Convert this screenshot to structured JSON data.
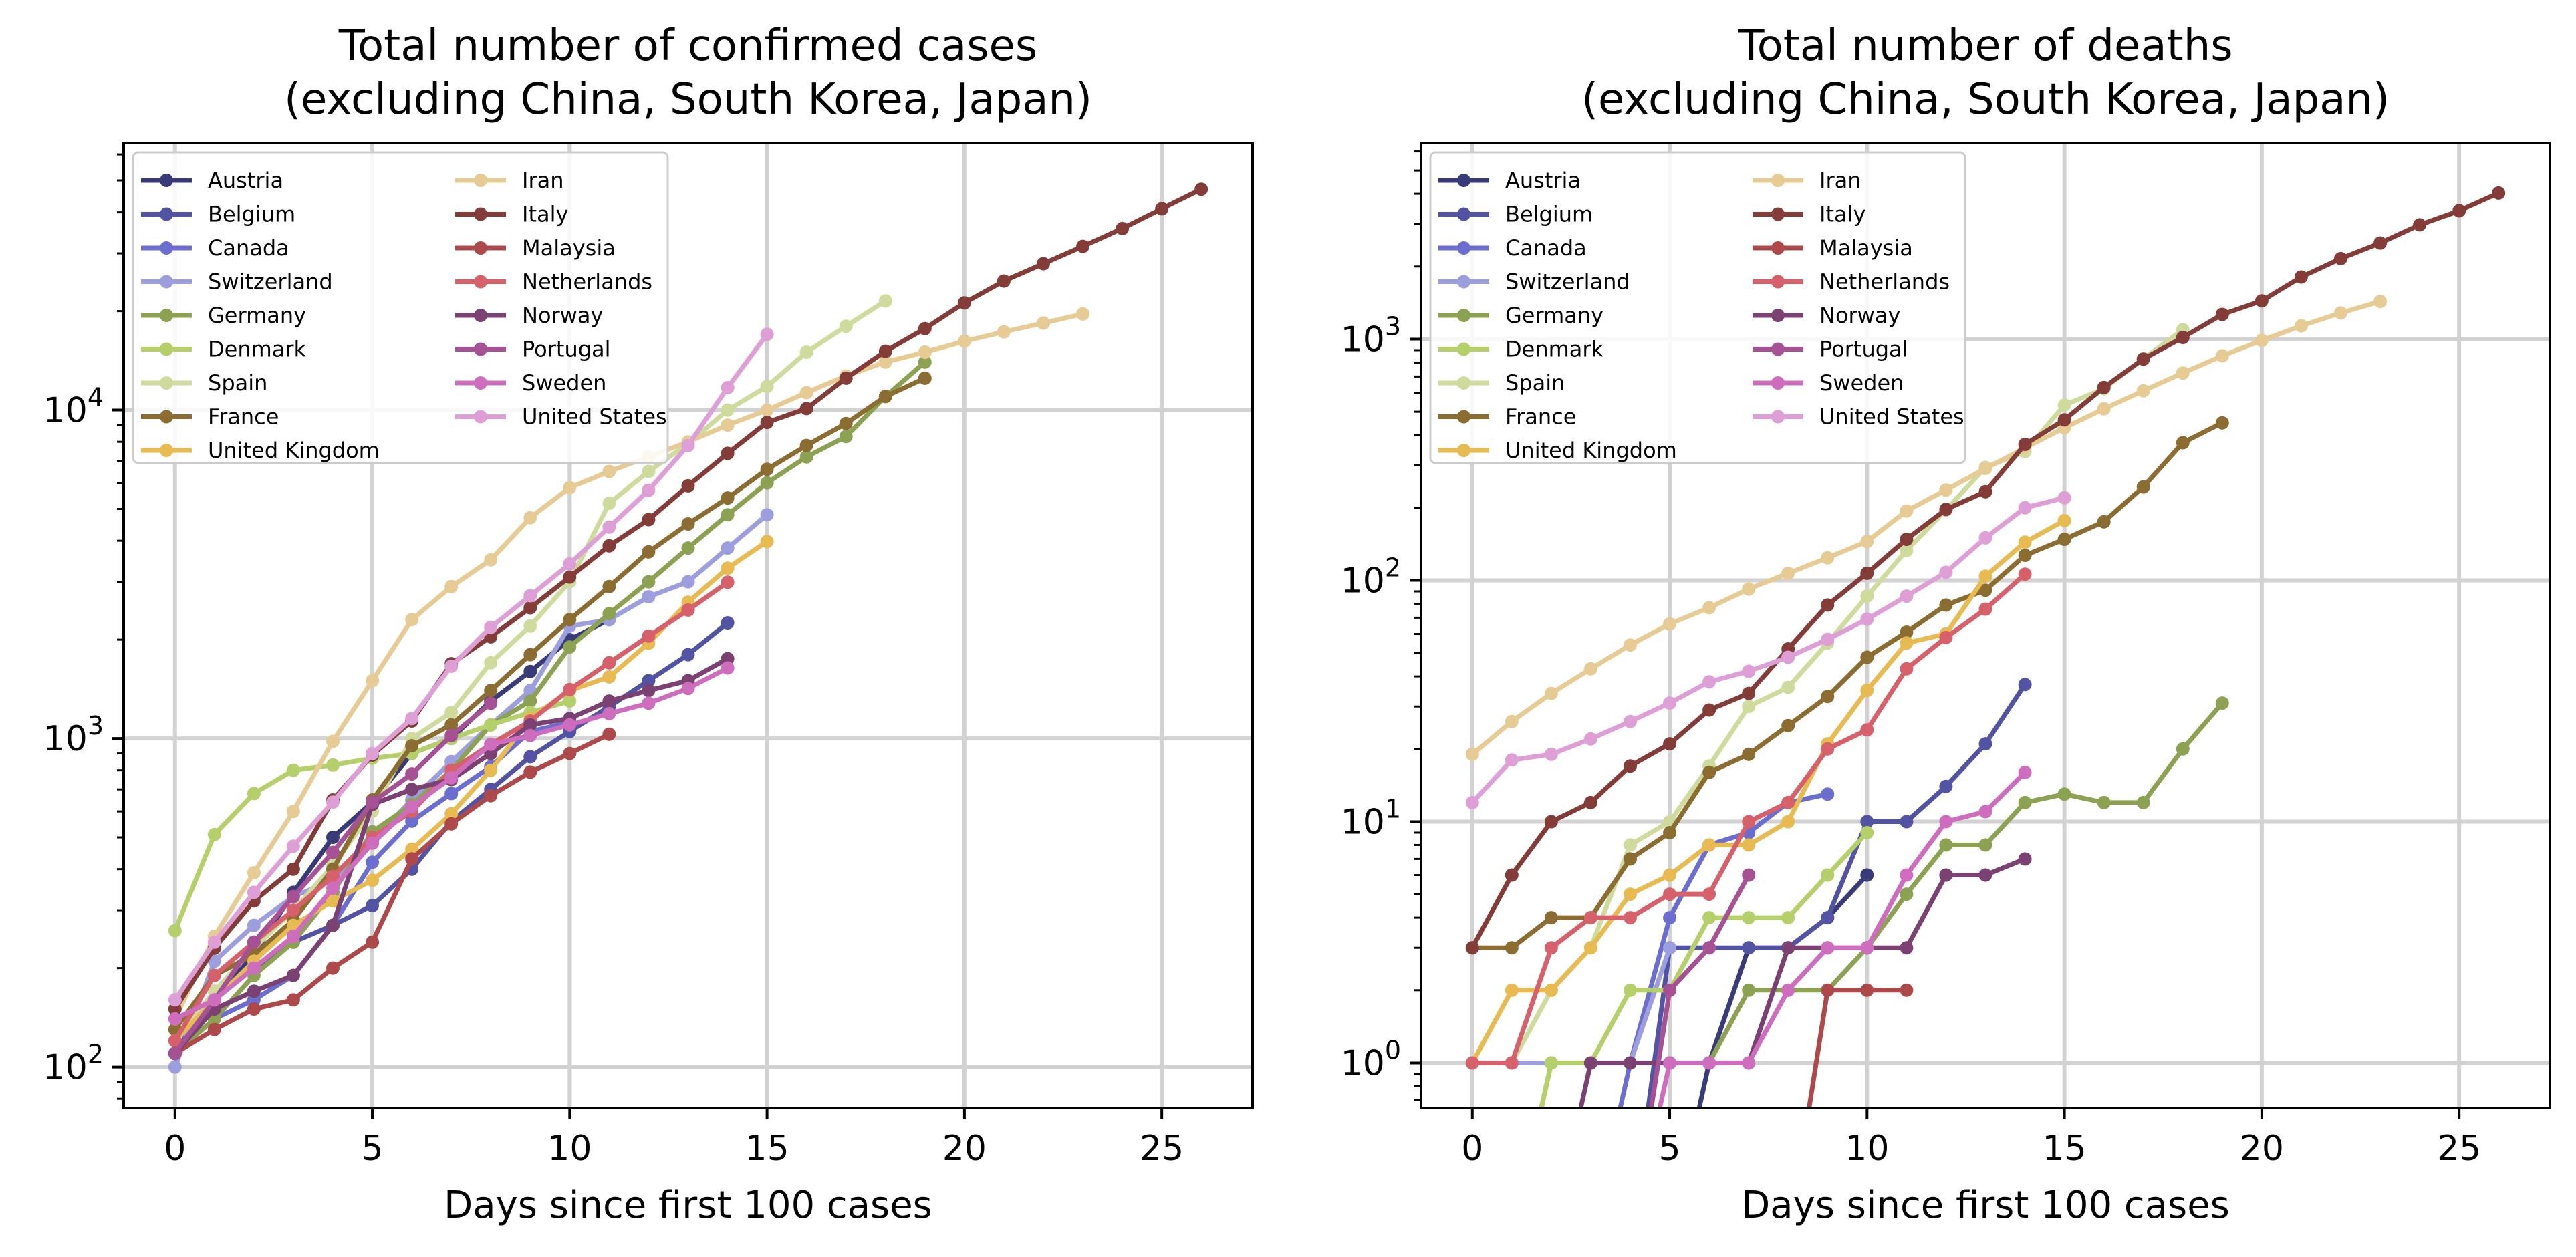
{
  "chart_data": [
    {
      "type": "line",
      "title": "Total number of confirmed cases\n(excluding China, South Korea, Japan)",
      "xlabel": "Days since first 100 cases",
      "ylabel": "",
      "yscale": "log",
      "xlim": [
        -1.3,
        27.3
      ],
      "ylim": [
        75,
        65000
      ],
      "xticks": [
        "0",
        "5",
        "10",
        "15",
        "20",
        "25"
      ],
      "yticks": [
        "10^2",
        "10^3",
        "10^4"
      ],
      "grid": true,
      "legend": "upper left, 2 columns",
      "series": [
        {
          "name": "Austria",
          "color": "#393b79",
          "values": [
            110,
            160,
            220,
            340,
            500,
            640,
            900,
            1000,
            1300,
            1600,
            2000,
            2300
          ]
        },
        {
          "name": "Belgium",
          "color": "#5254a3",
          "values": [
            110,
            170,
            200,
            240,
            270,
            310,
            400,
            560,
            700,
            880,
            1050,
            1250,
            1500,
            1800,
            2250
          ]
        },
        {
          "name": "Canada",
          "color": "#6b6ecf",
          "values": [
            110,
            140,
            160,
            190,
            270,
            420,
            560,
            680,
            820,
            1050,
            1120
          ]
        },
        {
          "name": "Switzerland",
          "color": "#9c9ede",
          "values": [
            100,
            210,
            270,
            330,
            370,
            490,
            650,
            850,
            1100,
            1400,
            2200,
            2300,
            2700,
            3000,
            3800,
            4800
          ]
        },
        {
          "name": "Germany",
          "color": "#8ca252",
          "values": [
            110,
            140,
            190,
            240,
            340,
            520,
            630,
            800,
            1100,
            1300,
            1900,
            2400,
            3000,
            3800,
            4800,
            6000,
            7200,
            8300,
            11000,
            14000
          ]
        },
        {
          "name": "Denmark",
          "color": "#b5cf6b",
          "values": [
            260,
            510,
            680,
            800,
            830,
            870,
            900,
            1000,
            1100,
            1200,
            1300
          ]
        },
        {
          "name": "Spain",
          "color": "#cedb9c",
          "values": [
            120,
            170,
            230,
            300,
            410,
            600,
            1000,
            1200,
            1700,
            2200,
            3000,
            5200,
            6500,
            7900,
            10000,
            11800,
            15000,
            18000,
            21500
          ]
        },
        {
          "name": "France",
          "color": "#8c6d31",
          "values": [
            130,
            190,
            220,
            280,
            400,
            650,
            950,
            1100,
            1400,
            1800,
            2300,
            2900,
            3700,
            4500,
            5400,
            6600,
            7800,
            9100,
            11000,
            12500
          ]
        },
        {
          "name": "United Kingdom",
          "color": "#e7ba52",
          "values": [
            120,
            160,
            210,
            270,
            320,
            370,
            460,
            590,
            800,
            1150,
            1400,
            1540,
            1950,
            2600,
            3300,
            3980
          ]
        },
        {
          "name": "Iran",
          "color": "#e7cb94",
          "values": [
            140,
            250,
            390,
            600,
            980,
            1500,
            2300,
            2900,
            3500,
            4700,
            5800,
            6500,
            7200,
            8000,
            9000,
            10000,
            11300,
            12700,
            14000,
            15000,
            16200,
            17300,
            18400,
            19600
          ]
        },
        {
          "name": "Italy",
          "color": "#843c39",
          "values": [
            150,
            230,
            320,
            400,
            650,
            890,
            1130,
            1690,
            2040,
            2500,
            3100,
            3860,
            4640,
            5880,
            7380,
            9170,
            10100,
            12500,
            15100,
            17700,
            21200,
            24700,
            27900,
            31500,
            35700,
            41000,
            47000
          ]
        },
        {
          "name": "Malaysia",
          "color": "#ad494a",
          "values": [
            110,
            130,
            150,
            160,
            200,
            240,
            430,
            550,
            670,
            790,
            900,
            1030
          ]
        },
        {
          "name": "Netherlands",
          "color": "#d6616b",
          "values": [
            120,
            190,
            240,
            300,
            380,
            500,
            600,
            800,
            960,
            1130,
            1410,
            1700,
            2050,
            2460,
            2990
          ]
        },
        {
          "name": "Norway",
          "color": "#7b4173",
          "values": [
            110,
            150,
            170,
            190,
            270,
            630,
            700,
            750,
            900,
            1100,
            1150,
            1300,
            1400,
            1500,
            1750
          ]
        },
        {
          "name": "Portugal",
          "color": "#a55194",
          "values": [
            110,
            160,
            240,
            330,
            450,
            640,
            780,
            1020,
            1280
          ]
        },
        {
          "name": "Sweden",
          "color": "#ce6dbd",
          "values": [
            140,
            160,
            200,
            250,
            350,
            480,
            620,
            760,
            960,
            1020,
            1100,
            1190,
            1280,
            1420,
            1640
          ]
        },
        {
          "name": "United States",
          "color": "#de9ed6",
          "values": [
            160,
            240,
            340,
            470,
            640,
            900,
            1150,
            1660,
            2180,
            2720,
            3400,
            4400,
            5700,
            7800,
            11700,
            17000
          ]
        }
      ]
    },
    {
      "type": "line",
      "title": "Total number of deaths\n(excluding China, South Korea, Japan)",
      "xlabel": "Days since first 100 cases",
      "ylabel": "",
      "yscale": "log",
      "xlim": [
        -1.3,
        27.3
      ],
      "ylim": [
        0.65,
        6500
      ],
      "xticks": [
        "0",
        "5",
        "10",
        "15",
        "20",
        "25"
      ],
      "yticks": [
        "10^0",
        "10^1",
        "10^2",
        "10^3"
      ],
      "grid": true,
      "legend": "upper left, 2 columns",
      "series": [
        {
          "name": "Austria",
          "color": "#393b79",
          "values": [
            0,
            0,
            0,
            0,
            0,
            0,
            1,
            3,
            3,
            4,
            6
          ]
        },
        {
          "name": "Belgium",
          "color": "#5254a3",
          "values": [
            0,
            0,
            0,
            0,
            0,
            3,
            3,
            3,
            3,
            4,
            10,
            10,
            14,
            21,
            37
          ]
        },
        {
          "name": "Canada",
          "color": "#6b6ecf",
          "values": [
            0,
            0,
            0,
            0,
            1,
            4,
            8,
            9,
            12,
            13
          ]
        },
        {
          "name": "Switzerland",
          "color": "#9c9ede",
          "values": [
            1,
            1,
            1,
            1,
            1,
            3
          ]
        },
        {
          "name": "Germany",
          "color": "#8ca252",
          "values": [
            0,
            0,
            1,
            1,
            1,
            1,
            1,
            2,
            2,
            2,
            3,
            5,
            8,
            8,
            12,
            13,
            12,
            12,
            20,
            31
          ]
        },
        {
          "name": "Denmark",
          "color": "#b5cf6b",
          "values": [
            0,
            0,
            1,
            1,
            2,
            2,
            4,
            4,
            4,
            6,
            9
          ]
        },
        {
          "name": "Spain",
          "color": "#cedb9c",
          "values": [
            1,
            1,
            2,
            3,
            8,
            10,
            17,
            30,
            36,
            55,
            86,
            133,
            196,
            294,
            342,
            533,
            623,
            830,
            1093
          ]
        },
        {
          "name": "France",
          "color": "#8c6d31",
          "values": [
            3,
            3,
            4,
            4,
            7,
            9,
            16,
            19,
            25,
            33,
            48,
            61,
            79,
            91,
            127,
            148,
            175,
            244,
            372,
            450
          ]
        },
        {
          "name": "United Kingdom",
          "color": "#e7ba52",
          "values": [
            1,
            2,
            2,
            3,
            5,
            6,
            8,
            8,
            10,
            21,
            35,
            55,
            60,
            104,
            144,
            177
          ]
        },
        {
          "name": "Iran",
          "color": "#e7cb94",
          "values": [
            19,
            26,
            34,
            43,
            54,
            66,
            77,
            92,
            107,
            124,
            145,
            194,
            237,
            291,
            354,
            429,
            514,
            611,
            724,
            853,
            988,
            1135,
            1284,
            1433
          ]
        },
        {
          "name": "Italy",
          "color": "#843c39",
          "values": [
            3,
            6,
            10,
            12,
            17,
            21,
            29,
            34,
            52,
            79,
            107,
            148,
            197,
            233,
            366,
            463,
            631,
            827,
            1016,
            1266,
            1441,
            1809,
            2158,
            2503,
            2978,
            3405,
            4032
          ]
        },
        {
          "name": "Malaysia",
          "color": "#ad494a",
          "values": [
            0,
            0,
            0,
            0,
            0,
            0,
            0,
            0,
            0,
            2,
            2,
            2
          ]
        },
        {
          "name": "Netherlands",
          "color": "#d6616b",
          "values": [
            1,
            1,
            3,
            4,
            4,
            5,
            5,
            10,
            12,
            20,
            24,
            43,
            58,
            76,
            106
          ]
        },
        {
          "name": "Norway",
          "color": "#7b4173",
          "values": [
            0,
            0,
            0,
            1,
            1,
            1,
            1,
            1,
            3,
            3,
            3,
            3,
            6,
            6,
            7
          ]
        },
        {
          "name": "Portugal",
          "color": "#a55194",
          "values": [
            0,
            0,
            0,
            0,
            0,
            2,
            3,
            6
          ]
        },
        {
          "name": "Sweden",
          "color": "#ce6dbd",
          "values": [
            0,
            0,
            0,
            0,
            0,
            1,
            1,
            1,
            2,
            3,
            3,
            6,
            10,
            11,
            16
          ]
        },
        {
          "name": "United States",
          "color": "#de9ed6",
          "values": [
            12,
            18,
            19,
            22,
            26,
            31,
            38,
            42,
            48,
            57,
            69,
            86,
            108,
            150,
            200,
            220
          ]
        }
      ]
    }
  ]
}
